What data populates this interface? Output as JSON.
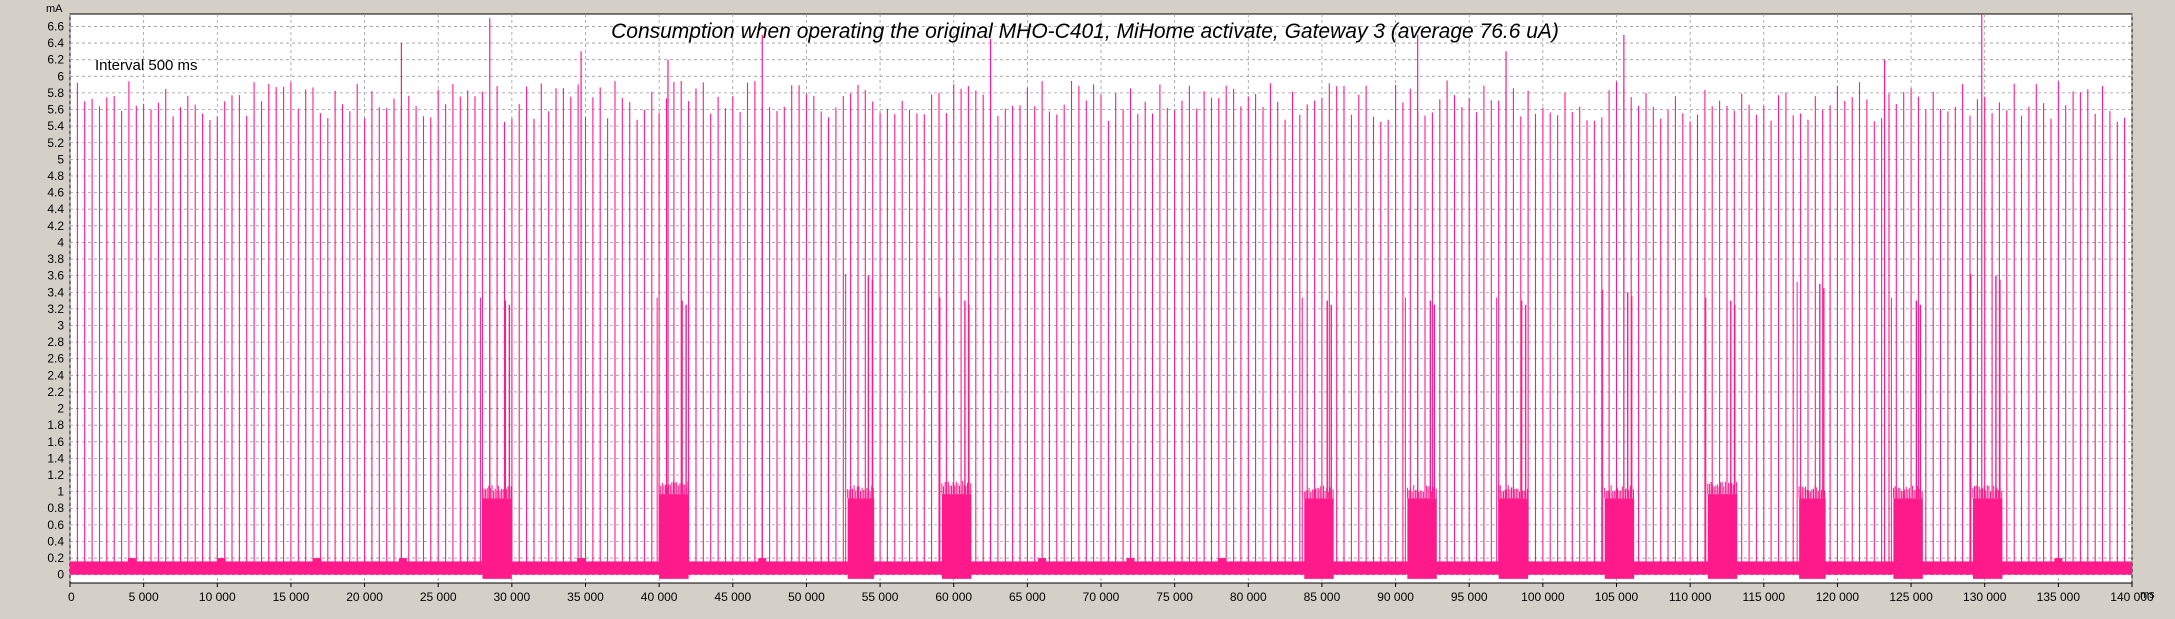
{
  "chart_data": {
    "type": "line",
    "title": "Consumption when operating the original MHO-C401, MiHome activate, Gateway 3  (average 76.6 uA)",
    "annotation": "Interval 500 ms",
    "ylabel": "mA",
    "xlabel": "ms",
    "xlim": [
      0,
      140000
    ],
    "ylim": [
      -0.1,
      6.75
    ],
    "grid": true,
    "y_ticks": [
      "0",
      "0.2",
      "0.4",
      "0.6",
      "0.8",
      "1",
      "1.2",
      "1.4",
      "1.6",
      "1.8",
      "2",
      "2.2",
      "2.4",
      "2.6",
      "2.8",
      "3",
      "3.2",
      "3.4",
      "3.6",
      "3.8",
      "4",
      "4.2",
      "4.4",
      "4.6",
      "4.8",
      "5",
      "5.2",
      "5.4",
      "5.6",
      "5.8",
      "6",
      "6.2",
      "6.4",
      "6.6"
    ],
    "x_ticks": [
      "0",
      "5 000",
      "10 000",
      "15 000",
      "20 000",
      "25 000",
      "30 000",
      "35 000",
      "40 000",
      "45 000",
      "50 000",
      "55 000",
      "60 000",
      "65 000",
      "70 000",
      "75 000",
      "80 000",
      "85 000",
      "90 000",
      "95 000",
      "100 000",
      "105 000",
      "110 000",
      "115 000",
      "120 000",
      "125 000",
      "130 000",
      "135 000",
      "140 000"
    ],
    "series": [
      {
        "color": "#ff1a8c",
        "baseline_ma": 0.08,
        "spike_interval_ms": 500,
        "typical_spike_ma": 5.8,
        "tall_spikes": [
          {
            "x": 28500,
            "y": 6.7
          },
          {
            "x": 47000,
            "y": 6.5
          },
          {
            "x": 62500,
            "y": 6.45
          },
          {
            "x": 91500,
            "y": 6.5
          },
          {
            "x": 105500,
            "y": 6.5
          },
          {
            "x": 129800,
            "y": 6.75
          },
          {
            "x": 22500,
            "y": 6.4
          },
          {
            "x": 34700,
            "y": 6.3
          },
          {
            "x": 40600,
            "y": 6.2
          },
          {
            "x": 97500,
            "y": 6.3
          },
          {
            "x": 123200,
            "y": 6.2
          }
        ],
        "activity_bursts": [
          {
            "x_start": 28000,
            "x_end": 30000,
            "level": 1.0,
            "peak": 3.3
          },
          {
            "x_start": 40000,
            "x_end": 42000,
            "level": 1.05,
            "peak": 3.3
          },
          {
            "x_start": 52800,
            "x_end": 54600,
            "level": 1.0,
            "peak": 3.6
          },
          {
            "x_start": 59200,
            "x_end": 61200,
            "level": 1.05,
            "peak": 3.3
          },
          {
            "x_start": 83800,
            "x_end": 85800,
            "level": 1.0,
            "peak": 3.3
          },
          {
            "x_start": 90800,
            "x_end": 92800,
            "level": 1.0,
            "peak": 3.3
          },
          {
            "x_start": 97000,
            "x_end": 99000,
            "level": 1.0,
            "peak": 3.3
          },
          {
            "x_start": 104200,
            "x_end": 106200,
            "level": 1.0,
            "peak": 3.4
          },
          {
            "x_start": 111200,
            "x_end": 113200,
            "level": 1.05,
            "peak": 3.3
          },
          {
            "x_start": 117400,
            "x_end": 119200,
            "level": 1.0,
            "peak": 3.5
          },
          {
            "x_start": 123800,
            "x_end": 125800,
            "level": 1.0,
            "peak": 3.3
          },
          {
            "x_start": 129200,
            "x_end": 131200,
            "level": 1.0,
            "peak": 3.6
          }
        ],
        "minor_bumps": [
          {
            "x": 4200,
            "y": 0.2
          },
          {
            "x": 10300,
            "y": 0.2
          },
          {
            "x": 16800,
            "y": 0.2
          },
          {
            "x": 22600,
            "y": 0.2
          },
          {
            "x": 34700,
            "y": 0.2
          },
          {
            "x": 47000,
            "y": 0.2
          },
          {
            "x": 66000,
            "y": 0.2
          },
          {
            "x": 72000,
            "y": 0.2
          },
          {
            "x": 78200,
            "y": 0.2
          },
          {
            "x": 135000,
            "y": 0.2
          }
        ]
      }
    ]
  }
}
